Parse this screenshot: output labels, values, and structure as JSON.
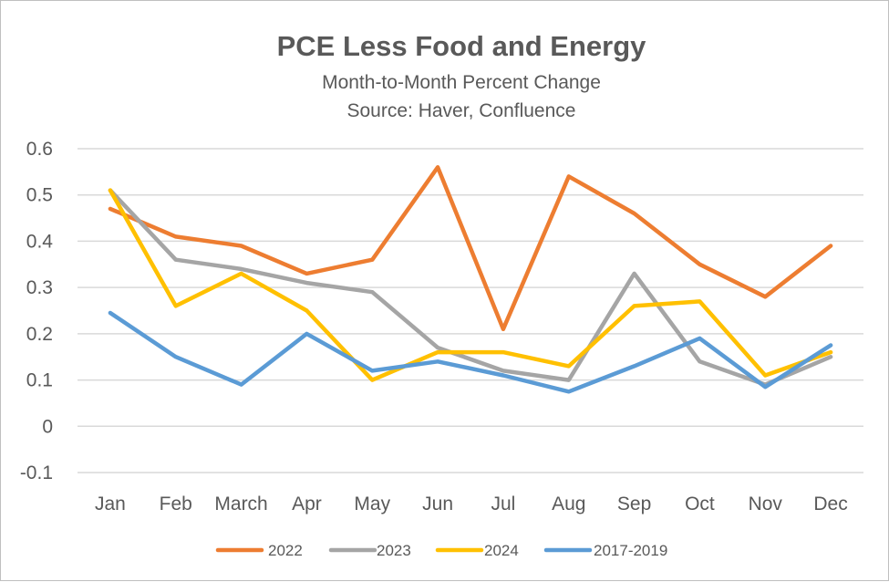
{
  "chart_data": {
    "type": "line",
    "title": "PCE Less Food and Energy",
    "subtitle": [
      "Month-to-Month Percent Change",
      "Source: Haver, Confluence"
    ],
    "xlabel": "",
    "ylabel": "",
    "categories": [
      "Jan",
      "Feb",
      "March",
      "Apr",
      "May",
      "Jun",
      "Jul",
      "Aug",
      "Sep",
      "Oct",
      "Nov",
      "Dec"
    ],
    "ylim": [
      -0.1,
      0.6
    ],
    "yticks": [
      "0.6",
      "0.5",
      "0.4",
      "0.3",
      "0.2",
      "0.1",
      "0",
      "-0.1"
    ],
    "grid": true,
    "legend_position": "bottom",
    "series": [
      {
        "name": "2022",
        "color": "#ED7D31",
        "values": [
          0.47,
          0.41,
          0.39,
          0.33,
          0.36,
          0.56,
          0.21,
          0.54,
          0.46,
          0.35,
          0.28,
          0.39
        ]
      },
      {
        "name": "2023",
        "color": "#A5A5A5",
        "values": [
          0.51,
          0.36,
          0.34,
          0.31,
          0.29,
          0.17,
          0.12,
          0.1,
          0.33,
          0.14,
          0.09,
          0.15
        ]
      },
      {
        "name": "2024",
        "color": "#FFC000",
        "values": [
          0.51,
          0.26,
          0.33,
          0.25,
          0.1,
          0.16,
          0.16,
          0.13,
          0.26,
          0.27,
          0.11,
          0.16
        ]
      },
      {
        "name": "2017-2019",
        "color": "#5B9BD5",
        "values": [
          0.245,
          0.15,
          0.09,
          0.2,
          0.12,
          0.14,
          0.11,
          0.075,
          0.13,
          0.19,
          0.085,
          0.175
        ]
      }
    ]
  }
}
